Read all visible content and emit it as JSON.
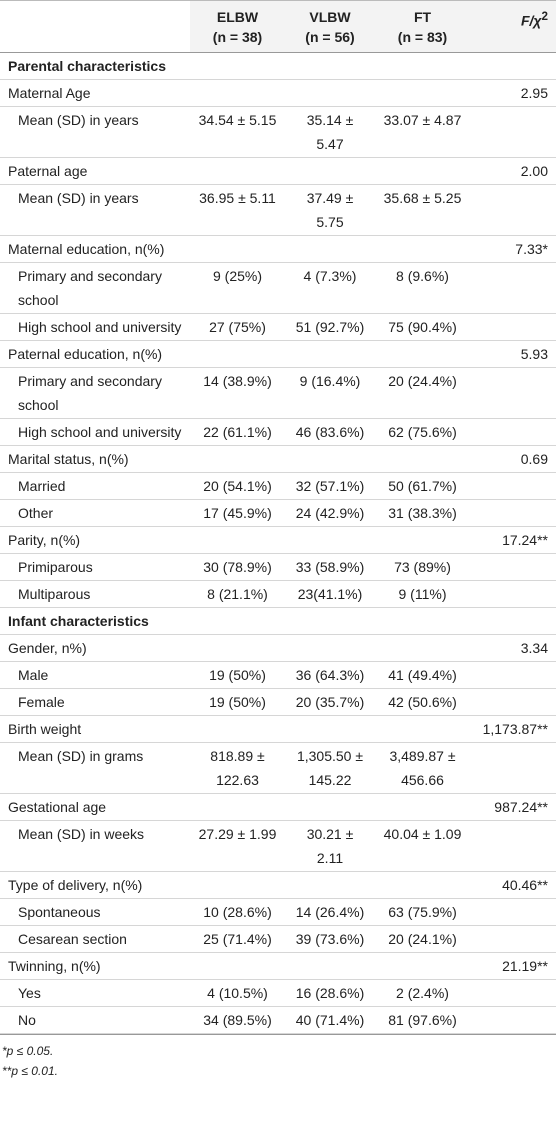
{
  "table": {
    "columns": [
      {
        "name": "ELBW",
        "n": "(n = 38)"
      },
      {
        "name": "VLBW",
        "n": "(n = 56)"
      },
      {
        "name": "FT",
        "n": "(n = 83)"
      }
    ],
    "stat_header": {
      "text": "F/χ",
      "sup": "2"
    },
    "sections": [
      {
        "title": "Parental characteristics",
        "groups": [
          {
            "label": "Maternal Age",
            "stat": "2.95",
            "items": [
              {
                "label": "Mean (SD) in years",
                "values": [
                  "34.54 ± 5.15",
                  "35.14 ± 5.47",
                  "33.07 ± 4.87"
                ]
              }
            ]
          },
          {
            "label": "Paternal age",
            "stat": "2.00",
            "items": [
              {
                "label": "Mean (SD) in years",
                "values": [
                  "36.95 ± 5.11",
                  "37.49 ± 5.75",
                  "35.68 ± 5.25"
                ]
              }
            ]
          },
          {
            "label": "Maternal education, n(%)",
            "stat": "7.33*",
            "items": [
              {
                "label": "Primary and secondary school",
                "values": [
                  "9 (25%)",
                  "4 (7.3%)",
                  "8 (9.6%)"
                ]
              },
              {
                "label": "High school and university",
                "values": [
                  "27 (75%)",
                  "51 (92.7%)",
                  "75 (90.4%)"
                ]
              }
            ]
          },
          {
            "label": "Paternal education, n(%)",
            "stat": "5.93",
            "items": [
              {
                "label": "Primary and secondary school",
                "values": [
                  "14 (38.9%)",
                  "9 (16.4%)",
                  "20 (24.4%)"
                ]
              },
              {
                "label": "High school and university",
                "values": [
                  "22 (61.1%)",
                  "46 (83.6%)",
                  "62 (75.6%)"
                ]
              }
            ]
          },
          {
            "label": "Marital status, n(%)",
            "stat": "0.69",
            "items": [
              {
                "label": "Married",
                "values": [
                  "20 (54.1%)",
                  "32 (57.1%)",
                  "50 (61.7%)"
                ]
              },
              {
                "label": "Other",
                "values": [
                  "17 (45.9%)",
                  "24 (42.9%)",
                  "31 (38.3%)"
                ]
              }
            ]
          },
          {
            "label": "Parity, n(%)",
            "stat": "17.24**",
            "items": [
              {
                "label": "Primiparous",
                "values": [
                  "30 (78.9%)",
                  "33 (58.9%)",
                  "73 (89%)"
                ]
              },
              {
                "label": "Multiparous",
                "values": [
                  "8 (21.1%)",
                  "23(41.1%)",
                  "9 (11%)"
                ]
              }
            ]
          }
        ]
      },
      {
        "title": "Infant characteristics",
        "groups": [
          {
            "label": "Gender, n%)",
            "stat": "3.34",
            "items": [
              {
                "label": "Male",
                "values": [
                  "19 (50%)",
                  "36 (64.3%)",
                  "41 (49.4%)"
                ]
              },
              {
                "label": "Female",
                "values": [
                  "19 (50%)",
                  "20 (35.7%)",
                  "42 (50.6%)"
                ]
              }
            ]
          },
          {
            "label": "Birth weight",
            "stat": "1,173.87**",
            "items": [
              {
                "label": "Mean (SD) in grams",
                "values": [
                  "818.89 ± 122.63",
                  "1,305.50 ± 145.22",
                  "3,489.87 ± 456.66"
                ]
              }
            ]
          },
          {
            "label": "Gestational age",
            "stat": "987.24**",
            "items": [
              {
                "label": "Mean (SD) in weeks",
                "values": [
                  "27.29 ± 1.99",
                  "30.21 ± 2.11",
                  "40.04 ± 1.09"
                ]
              }
            ]
          },
          {
            "label": "Type of delivery, n(%)",
            "stat": "40.46**",
            "items": [
              {
                "label": "Spontaneous",
                "values": [
                  "10 (28.6%)",
                  "14 (26.4%)",
                  "63 (75.9%)"
                ]
              },
              {
                "label": "Cesarean section",
                "values": [
                  "25 (71.4%)",
                  "39 (73.6%)",
                  "20 (24.1%)"
                ]
              }
            ]
          },
          {
            "label": "Twinning, n(%)",
            "stat": "21.19**",
            "items": [
              {
                "label": "Yes",
                "values": [
                  "4 (10.5%)",
                  "16 (28.6%)",
                  "2 (2.4%)"
                ]
              },
              {
                "label": "No",
                "values": [
                  "34 (89.5%)",
                  "40 (71.4%)",
                  "81 (97.6%)"
                ]
              }
            ]
          }
        ]
      }
    ]
  },
  "footnotes": [
    "*p ≤ 0.05.",
    "**p ≤ 0.01."
  ]
}
